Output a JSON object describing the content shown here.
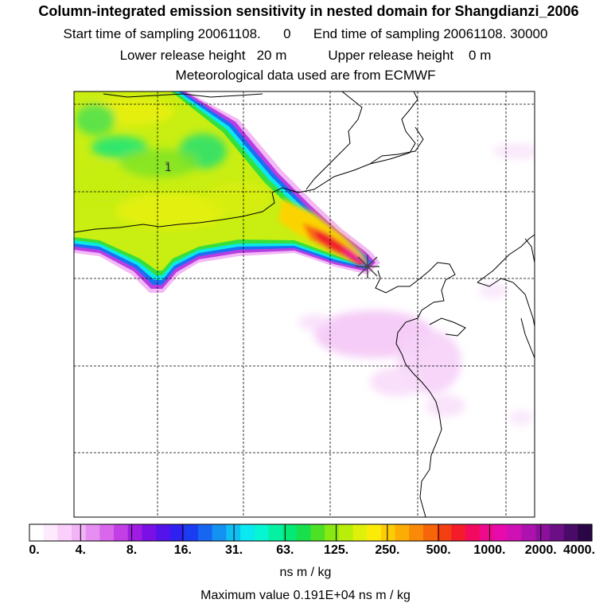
{
  "chart_data": {
    "type": "heatmap",
    "title": "Column-integrated emission sensitivity in nested domain for Shangdianzi_2006",
    "subtitle_lines": [
      "Start time of sampling 20061108.      0      End time of sampling 20061108. 30000",
      "Lower release height   20 m           Upper release height    0 m",
      "Meteorological data used are from ECMWF"
    ],
    "colorbar": {
      "tick_labels": [
        "0.",
        "4.",
        "8.",
        "16.",
        "31.",
        "63.",
        "125.",
        "250.",
        "500.",
        "1000.",
        "2000.",
        "4000."
      ],
      "units": "ns m / kg",
      "colors": [
        "#ffffff",
        "#fdeafd",
        "#fad0fb",
        "#f2b3f7",
        "#e68ef2",
        "#d967ec",
        "#c23fe6",
        "#a01ce2",
        "#7a10e6",
        "#5313ea",
        "#2f21ef",
        "#1b3df1",
        "#1766f2",
        "#1492f2",
        "#10bff2",
        "#0ae8f0",
        "#06f5d2",
        "#04f0a2",
        "#04e876",
        "#18e04c",
        "#4ee024",
        "#8ae812",
        "#b8ee0a",
        "#dff00a",
        "#fbec08",
        "#fccd06",
        "#fbac05",
        "#f98a07",
        "#f7650b",
        "#f43f10",
        "#f31c2a",
        "#f10a5e",
        "#ee0a8c",
        "#e70aac",
        "#cf10b4",
        "#ad12ae",
        "#8c109c",
        "#6c0e86",
        "#4a0a68",
        "#2a0646"
      ]
    },
    "max_value_label": "Maximum value  0.191E+04 ns m / kg",
    "contour_label": "1",
    "plume": {
      "source": "Shangdianzi receptor",
      "direction_from": "northwest",
      "max_value": 1910,
      "units": "ns m / kg"
    }
  }
}
